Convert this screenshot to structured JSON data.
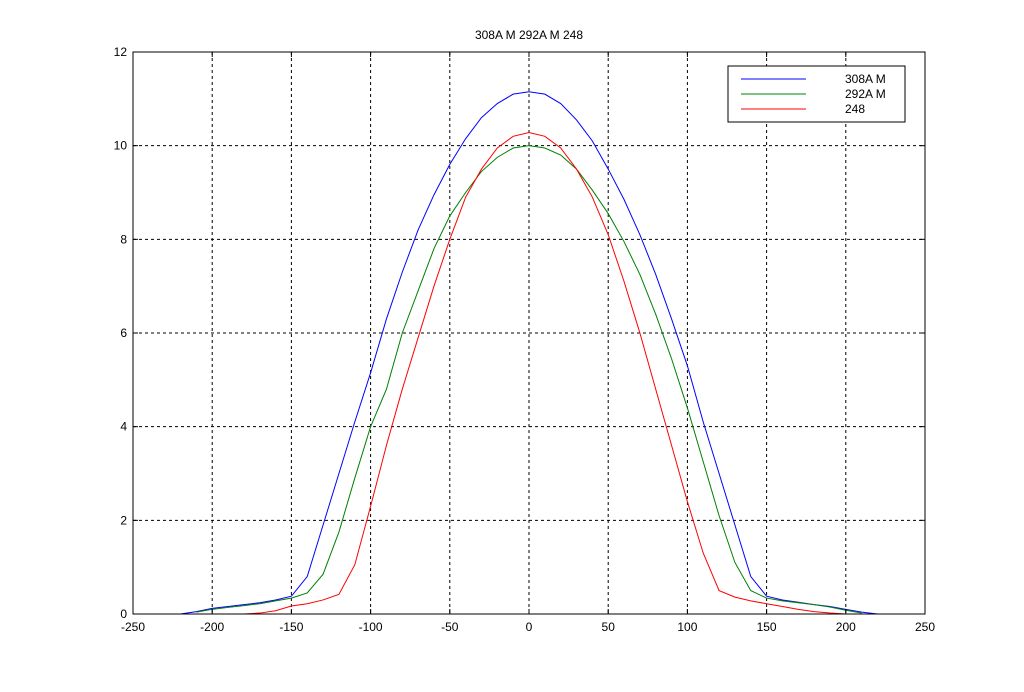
{
  "chart_data": {
    "type": "line",
    "title": "308A M 292A M 248",
    "xlabel": "",
    "ylabel": "",
    "xlim": [
      -250,
      250
    ],
    "ylim": [
      0,
      12
    ],
    "xticks": [
      -250,
      -200,
      -150,
      -100,
      -50,
      0,
      50,
      100,
      150,
      200,
      250
    ],
    "yticks": [
      0,
      2,
      4,
      6,
      8,
      10,
      12
    ],
    "grid": true,
    "legend_position": "top-right",
    "series": [
      {
        "name": "308A M",
        "color": "#0000ff",
        "x": [
          -220,
          -210,
          -200,
          -190,
          -180,
          -170,
          -160,
          -150,
          -140,
          -130,
          -120,
          -110,
          -100,
          -90,
          -80,
          -70,
          -60,
          -50,
          -40,
          -30,
          -20,
          -10,
          0,
          10,
          20,
          30,
          40,
          50,
          60,
          70,
          80,
          90,
          100,
          110,
          120,
          130,
          140,
          150,
          160,
          170,
          180,
          190,
          200,
          210,
          220
        ],
        "y": [
          0.0,
          0.05,
          0.12,
          0.16,
          0.2,
          0.24,
          0.3,
          0.38,
          0.8,
          1.9,
          3.0,
          4.1,
          5.15,
          6.3,
          7.3,
          8.2,
          8.95,
          9.6,
          10.15,
          10.6,
          10.9,
          11.1,
          11.15,
          11.1,
          10.9,
          10.55,
          10.1,
          9.5,
          8.85,
          8.1,
          7.25,
          6.3,
          5.3,
          4.1,
          3.0,
          1.9,
          0.8,
          0.38,
          0.3,
          0.25,
          0.2,
          0.16,
          0.1,
          0.04,
          0.0
        ]
      },
      {
        "name": "292A M",
        "color": "#008000",
        "x": [
          -210,
          -200,
          -190,
          -180,
          -170,
          -160,
          -150,
          -140,
          -130,
          -120,
          -110,
          -100,
          -90,
          -80,
          -70,
          -60,
          -50,
          -40,
          -30,
          -20,
          -10,
          0,
          10,
          20,
          30,
          40,
          50,
          60,
          70,
          80,
          90,
          100,
          110,
          120,
          130,
          140,
          150,
          160,
          170,
          180,
          190,
          200,
          210
        ],
        "y": [
          0.04,
          0.1,
          0.14,
          0.18,
          0.22,
          0.28,
          0.34,
          0.45,
          0.85,
          1.75,
          2.9,
          4.0,
          4.8,
          6.0,
          6.9,
          7.8,
          8.5,
          9.0,
          9.45,
          9.75,
          9.95,
          10.0,
          9.95,
          9.8,
          9.5,
          9.05,
          8.55,
          7.95,
          7.25,
          6.4,
          5.45,
          4.4,
          3.25,
          2.1,
          1.1,
          0.5,
          0.34,
          0.28,
          0.24,
          0.2,
          0.15,
          0.08,
          0.02
        ]
      },
      {
        "name": "248",
        "color": "#ff0000",
        "x": [
          -220,
          -200,
          -180,
          -170,
          -160,
          -150,
          -140,
          -130,
          -120,
          -110,
          -100,
          -90,
          -80,
          -70,
          -60,
          -50,
          -40,
          -30,
          -20,
          -10,
          0,
          10,
          20,
          30,
          40,
          50,
          60,
          70,
          80,
          90,
          100,
          110,
          120,
          130,
          140,
          150,
          160,
          170,
          180,
          190,
          200,
          220,
          240
        ],
        "y": [
          0.0,
          0.0,
          0.0,
          0.02,
          0.07,
          0.17,
          0.22,
          0.3,
          0.42,
          1.05,
          2.3,
          3.6,
          4.8,
          5.9,
          7.0,
          8.0,
          8.9,
          9.5,
          9.95,
          10.2,
          10.28,
          10.2,
          9.95,
          9.5,
          8.9,
          8.1,
          7.1,
          6.0,
          4.8,
          3.6,
          2.4,
          1.3,
          0.5,
          0.36,
          0.28,
          0.22,
          0.16,
          0.1,
          0.05,
          0.02,
          0.0,
          0.0,
          0.0
        ]
      }
    ]
  }
}
